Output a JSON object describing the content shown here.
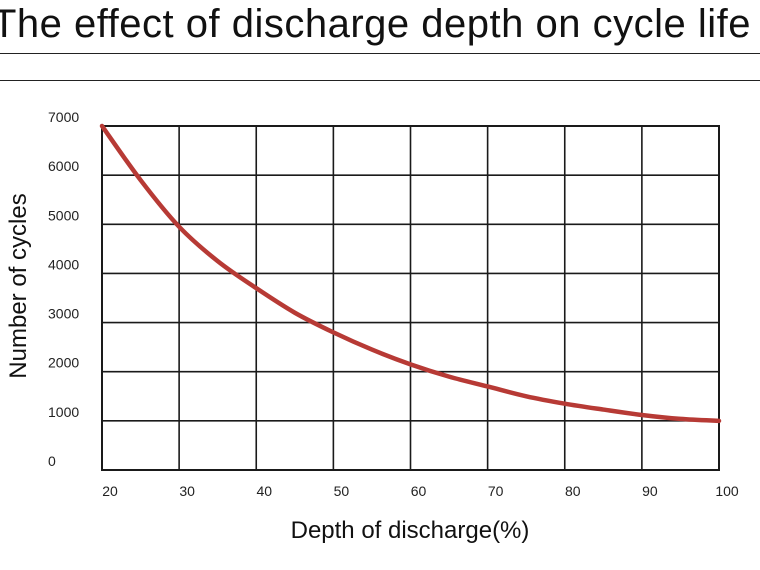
{
  "chart_data": {
    "type": "line",
    "title": "The effect of discharge depth on cycle life",
    "xlabel": "Depth of discharge(%)",
    "ylabel": "Number of cycles",
    "xlim": [
      20,
      100
    ],
    "ylim": [
      0,
      7000
    ],
    "x_ticks": [
      "20",
      "30",
      "40",
      "50",
      "60",
      "70",
      "80",
      "90",
      "100"
    ],
    "y_ticks": [
      "0",
      "1000",
      "2000",
      "3000",
      "4000",
      "5000",
      "6000",
      "7000"
    ],
    "grid": true,
    "series": [
      {
        "color": "#b73a35",
        "x": [
          20,
          25,
          30,
          35,
          40,
          45,
          50,
          55,
          60,
          65,
          70,
          75,
          80,
          85,
          90,
          95,
          100
        ],
        "y": [
          7000,
          5900,
          4950,
          4250,
          3700,
          3200,
          2800,
          2450,
          2150,
          1900,
          1700,
          1500,
          1350,
          1230,
          1120,
          1040,
          1000
        ]
      }
    ]
  }
}
